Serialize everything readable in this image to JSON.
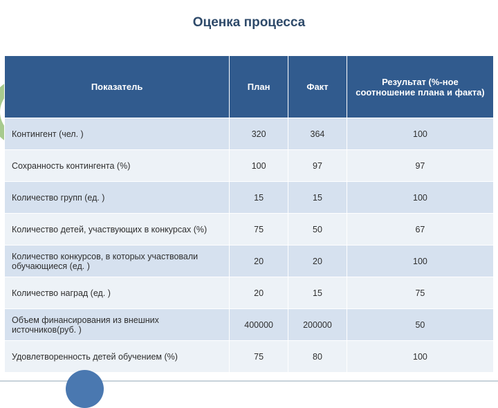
{
  "title": "Оценка процесса",
  "headers": {
    "indicator": "Показатель",
    "plan": "План",
    "fact": "Факт",
    "result": "Результат\n(%-ное соотношение плана и факта)"
  },
  "rows": [
    {
      "indicator": "Контингент (чел. )",
      "plan": "320",
      "fact": "364",
      "result": "100"
    },
    {
      "indicator": "Сохранность контингента (%)",
      "plan": "100",
      "fact": "97",
      "result": "97"
    },
    {
      "indicator": "Количество групп (ед. )",
      "plan": "15",
      "fact": "15",
      "result": "100"
    },
    {
      "indicator": "Количество детей, участвующих в конкурсах (%)",
      "plan": "75",
      "fact": "50",
      "result": "67"
    },
    {
      "indicator": "Количество конкурсов, в которых участвовали обучающиеся (ед. )",
      "plan": "20",
      "fact": "20",
      "result": "100"
    },
    {
      "indicator": "Количество наград (ед. )",
      "plan": "20",
      "fact": "15",
      "result": "75"
    },
    {
      "indicator": "Объем финансирования из внешних источников(руб. )",
      "plan": "400000",
      "fact": "200000",
      "result": "50"
    },
    {
      "indicator": "Удовлетворенность детей обучением (%)",
      "plan": "75",
      "fact": "80",
      "result": "100"
    }
  ],
  "colors": {
    "header_bg": "#315b8e",
    "row_odd_bg": "#d6e1ef",
    "row_even_bg": "#edf2f7",
    "accent_green": "#a7ca8e",
    "accent_blue": "#4a78b0"
  }
}
